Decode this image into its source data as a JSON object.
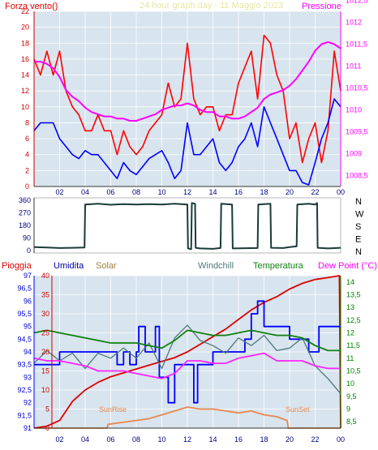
{
  "header": {
    "title": "24 hour graph day - 11 Maggio 2023",
    "left_label": "Forza vento()",
    "right_label": "Pressione"
  },
  "bottom_header": {
    "pioggia": "Pioggia",
    "umidita": "Umidita",
    "solar": "Solar",
    "windchill": "Windchill",
    "temperatura": "Temperatura",
    "dewpoint": "Dew Point (°C)"
  },
  "annotations": {
    "sunrise": "SunRise",
    "sunset": "SunSet"
  },
  "direction_labels": [
    "N",
    "W",
    "S",
    "E",
    "N"
  ],
  "colors": {
    "wind_gust": "#ff0000",
    "wind_avg": "#0000ff",
    "pressure": "#ff00ff",
    "direction": "#1a3a3a",
    "rain": "#dd0000",
    "humidity": "#0000ff",
    "solar": "#e88850",
    "windchill": "#507878",
    "temperature": "#108010",
    "dewpoint": "#ff22ff",
    "plot_bg": "#d8e4ee",
    "grid": "#ffffff",
    "axis_red": "#cc0000",
    "axis_green": "#008000"
  },
  "chart_data": [
    {
      "type": "line",
      "title": "24 hour graph day - 11 Maggio 2023",
      "x_ticks": [
        "02",
        "04",
        "06",
        "08",
        "10",
        "12",
        "14",
        "16",
        "18",
        "20",
        "22",
        "00"
      ],
      "y_left": {
        "label": "Forza vento()",
        "range": [
          0,
          22
        ],
        "ticks": [
          0,
          2,
          4,
          6,
          8,
          10,
          12,
          14,
          16,
          18,
          20,
          22
        ]
      },
      "y_right": {
        "label": "Pressione",
        "range": [
          1008.25,
          1012.25
        ],
        "ticks": [
          "1008,5",
          "1009",
          "1009,5",
          "1010",
          "1010,5",
          "1011",
          "1011,5",
          "1012",
          "1012,5"
        ],
        "tick_values": [
          1008.5,
          1009,
          1009.5,
          1010,
          1010.5,
          1011,
          1011.5,
          1012,
          1012.5
        ]
      },
      "series": [
        {
          "name": "Forza vento gust",
          "axis": "left",
          "color": "#ff0000",
          "x": [
            0,
            0.5,
            1,
            1.5,
            2,
            2.5,
            3,
            3.5,
            4,
            4.5,
            5,
            5.5,
            6,
            6.5,
            7,
            7.5,
            8,
            8.5,
            9,
            9.5,
            10,
            10.5,
            11,
            11.5,
            12,
            12.5,
            13,
            13.5,
            14,
            14.5,
            15,
            15.5,
            16,
            16.5,
            17,
            17.5,
            18,
            18.5,
            19,
            19.5,
            20,
            20.5,
            21,
            21.5,
            22,
            22.5,
            23,
            23.5,
            24
          ],
          "y": [
            16,
            14,
            17,
            14,
            17,
            12,
            10,
            9,
            7,
            7,
            9,
            7,
            7,
            4,
            7,
            5,
            4,
            5,
            7,
            8,
            9,
            13,
            10,
            11,
            18,
            11,
            9,
            10,
            10,
            7,
            9,
            9,
            13,
            15,
            17,
            11,
            19,
            18,
            14,
            12,
            6,
            8,
            3,
            6,
            8,
            3,
            7,
            17,
            12
          ]
        },
        {
          "name": "Forza vento media",
          "axis": "left",
          "color": "#0000ff",
          "x": [
            0,
            0.5,
            1,
            1.5,
            2,
            2.5,
            3,
            3.5,
            4,
            4.5,
            5,
            5.5,
            6,
            6.5,
            7,
            7.5,
            8,
            8.5,
            9,
            9.5,
            10,
            10.5,
            11,
            11.5,
            12,
            12.5,
            13,
            13.5,
            14,
            14.5,
            15,
            15.5,
            16,
            16.5,
            17,
            17.5,
            18,
            18.5,
            19,
            19.5,
            20,
            20.5,
            21,
            21.5,
            22,
            22.5,
            23,
            23.5,
            24
          ],
          "y": [
            7,
            8,
            8,
            8,
            6,
            5,
            4,
            3.5,
            4.5,
            4,
            4,
            3,
            2,
            1,
            3,
            2,
            1.5,
            2.5,
            3.5,
            4,
            4.5,
            3,
            1,
            2,
            8,
            4,
            4,
            5,
            6,
            3,
            2,
            3,
            5,
            6,
            8,
            5,
            10,
            8,
            6,
            4,
            2,
            2,
            0.5,
            0.2,
            3,
            6,
            8,
            11,
            10
          ]
        },
        {
          "name": "Pressione",
          "axis": "right",
          "color": "#ff00ff",
          "x": [
            0,
            0.5,
            1,
            1.5,
            2,
            2.5,
            3,
            3.5,
            4,
            4.5,
            5,
            5.5,
            6,
            6.5,
            7,
            7.5,
            8,
            8.5,
            9,
            9.5,
            10,
            10.5,
            11,
            11.5,
            12,
            12.5,
            13,
            13.5,
            14,
            14.5,
            15,
            15.5,
            16,
            16.5,
            17,
            17.5,
            18,
            18.5,
            19,
            19.5,
            20,
            20.5,
            21,
            21.5,
            22,
            22.5,
            23,
            23.5,
            24
          ],
          "y": [
            1011.1,
            1011.1,
            1011.05,
            1010.95,
            1010.75,
            1010.45,
            1010.3,
            1010.2,
            1010.05,
            1009.95,
            1009.9,
            1009.85,
            1009.85,
            1009.8,
            1009.8,
            1009.75,
            1009.75,
            1009.8,
            1009.85,
            1009.9,
            1010.0,
            1010.05,
            1010.1,
            1010.1,
            1010.15,
            1010.1,
            1010.0,
            1009.95,
            1009.95,
            1009.85,
            1009.85,
            1009.8,
            1009.8,
            1009.85,
            1009.95,
            1010.05,
            1010.25,
            1010.35,
            1010.4,
            1010.45,
            1010.55,
            1010.7,
            1010.9,
            1011.1,
            1011.35,
            1011.5,
            1011.55,
            1011.5,
            1011.4
          ]
        }
      ]
    },
    {
      "type": "line",
      "title": "",
      "x_ticks": [
        "02",
        "04",
        "06",
        "08",
        "10",
        "12",
        "14",
        "16",
        "18",
        "20",
        "22",
        "00"
      ],
      "y_left": {
        "range": [
          0,
          360
        ],
        "ticks": [
          0,
          90,
          180,
          270,
          360
        ]
      },
      "y_right_labels": [
        "N",
        "W",
        "S",
        "E",
        "N"
      ],
      "series": [
        {
          "name": "Direzione vento",
          "axis": "left",
          "color": "#1a3a3a",
          "x": [
            0,
            1,
            2,
            3,
            3.95,
            4,
            5,
            6,
            7,
            8,
            9,
            10,
            11,
            12,
            12.05,
            12.3,
            12.35,
            12.6,
            12.65,
            13,
            14,
            14.6,
            14.65,
            15.5,
            15.55,
            17.5,
            17.55,
            18.5,
            18.55,
            19.5,
            20,
            20.55,
            20.6,
            21.5,
            22,
            22.15,
            22.2,
            23,
            24
          ],
          "y": [
            25,
            22,
            18,
            20,
            22,
            330,
            335,
            328,
            332,
            330,
            333,
            330,
            335,
            330,
            15,
            10,
            340,
            335,
            20,
            15,
            12,
            18,
            335,
            330,
            15,
            18,
            330,
            335,
            20,
            18,
            25,
            30,
            330,
            335,
            330,
            340,
            20,
            15,
            20
          ]
        }
      ]
    },
    {
      "type": "line",
      "title": "",
      "x_ticks": [
        "02",
        "04",
        "06",
        "08",
        "10",
        "12",
        "14",
        "16",
        "18",
        "20",
        "22",
        "00"
      ],
      "axes": {
        "rain": {
          "range": [
            0,
            40
          ],
          "ticks": [
            0,
            5,
            10,
            15,
            20,
            25,
            30,
            35,
            40
          ]
        },
        "humidity": {
          "range": [
            91,
            97
          ],
          "ticks": [
            "91",
            "91,5",
            "92",
            "92,5",
            "93",
            "93,5",
            "94",
            "94,5",
            "95",
            "95,5",
            "96",
            "96,5",
            "97"
          ],
          "tick_values": [
            91,
            91.5,
            92,
            92.5,
            93,
            93.5,
            94,
            94.5,
            95,
            95.5,
            96,
            96.5,
            97
          ]
        },
        "temperature": {
          "range": [
            8.25,
            14.25
          ],
          "ticks": [
            "8,5",
            "9",
            "9,5",
            "10",
            "10,5",
            "11",
            "11,5",
            "12",
            "12,5",
            "13",
            "13,5",
            "14"
          ],
          "tick_values": [
            8.5,
            9,
            9.5,
            10,
            10.5,
            11,
            11.5,
            12,
            12.5,
            13,
            13.5,
            14
          ]
        }
      },
      "series": [
        {
          "name": "Pioggia",
          "axis": "rain",
          "color": "#dd0000",
          "x": [
            0,
            1,
            2,
            3,
            4,
            5,
            6,
            7,
            8,
            9,
            10,
            11,
            12,
            13,
            14,
            15,
            16,
            17,
            18,
            19,
            20,
            21,
            22,
            23,
            23.9,
            24
          ],
          "y": [
            0,
            0.5,
            2,
            7,
            10,
            12,
            13.5,
            14.5,
            15.5,
            16.5,
            17.5,
            18.5,
            20,
            22,
            24,
            26,
            28.5,
            31,
            33,
            34.5,
            36.5,
            38,
            39,
            39.5,
            40,
            0
          ]
        },
        {
          "name": "Umidita",
          "axis": "humidity",
          "color": "#0000ff",
          "x": [
            0,
            2,
            2,
            6.5,
            6.5,
            7,
            7,
            7.5,
            7.5,
            8,
            8,
            8.2,
            8.2,
            8.7,
            8.7,
            9.5,
            9.5,
            9.8,
            9.8,
            10.5,
            10.5,
            11,
            11,
            12.5,
            12.5,
            12.8,
            12.8,
            14,
            14,
            16.5,
            16.5,
            17,
            17,
            17.5,
            17.5,
            18,
            18,
            20,
            20,
            21.5,
            21.5,
            22.3,
            22.3,
            24
          ],
          "y": [
            93.5,
            93.5,
            94,
            94,
            93.5,
            93.5,
            94,
            94,
            93.5,
            93.5,
            94,
            94,
            95,
            95,
            94,
            94,
            95,
            95,
            93,
            93,
            92,
            92,
            93.5,
            93.5,
            92,
            92,
            93.5,
            93.5,
            94,
            94,
            94.5,
            94.5,
            95.5,
            95.5,
            96,
            96,
            95,
            95,
            94.5,
            94.5,
            94,
            94,
            95,
            95
          ]
        },
        {
          "name": "Solar",
          "axis": "rain",
          "color": "#e88850",
          "x": [
            0,
            5.7,
            5.8,
            8,
            9,
            10,
            11,
            12,
            13,
            14,
            15,
            16,
            17,
            18,
            19,
            19.8,
            19.9,
            24
          ],
          "y": [
            0,
            0,
            1,
            2,
            2.5,
            3.5,
            4.5,
            5.5,
            5,
            5,
            4.5,
            4,
            4.5,
            3.5,
            3,
            2,
            0,
            0
          ]
        },
        {
          "name": "Windchill",
          "axis": "temperature",
          "color": "#507878",
          "x": [
            0,
            1,
            2,
            3,
            4,
            5,
            6,
            7,
            8,
            9,
            10,
            11,
            12,
            13,
            14,
            15,
            16,
            17,
            18,
            19,
            20,
            21,
            22,
            23,
            24
          ],
          "y": [
            10.8,
            11.3,
            10.9,
            11.2,
            10.6,
            11.2,
            11.0,
            11.4,
            11.0,
            11.6,
            10.6,
            11.8,
            12.3,
            11.7,
            11.5,
            11.2,
            11.8,
            11.5,
            11.9,
            11.3,
            11.4,
            11.8,
            10.7,
            10.2,
            9.6
          ]
        },
        {
          "name": "Temperatura",
          "axis": "temperature",
          "color": "#108010",
          "x": [
            0,
            1,
            2,
            3,
            4,
            5,
            6,
            7,
            8,
            9,
            10,
            11,
            12,
            13,
            14,
            15,
            16,
            17,
            18,
            19,
            20,
            21,
            22,
            23,
            24
          ],
          "y": [
            12.0,
            12.1,
            12.0,
            11.9,
            11.8,
            11.7,
            11.6,
            11.6,
            11.6,
            11.5,
            11.4,
            11.7,
            12.1,
            12.0,
            11.9,
            11.9,
            12.0,
            12.1,
            12.0,
            11.9,
            11.9,
            11.8,
            11.5,
            11.3,
            11.3
          ]
        },
        {
          "name": "Dew Point",
          "axis": "temperature",
          "color": "#ff22ff",
          "x": [
            0,
            1,
            2,
            3,
            4,
            5,
            6,
            7,
            8,
            9,
            10,
            11,
            12,
            13,
            14,
            15,
            16,
            17,
            18,
            19,
            20,
            21,
            22,
            23,
            24
          ],
          "y": [
            11.0,
            10.9,
            10.9,
            10.8,
            10.7,
            10.5,
            10.5,
            10.5,
            10.4,
            10.3,
            10.2,
            10.4,
            10.9,
            10.9,
            10.8,
            10.8,
            11.0,
            11.1,
            11.2,
            10.9,
            10.9,
            10.9,
            10.7,
            10.6,
            10.6
          ]
        }
      ]
    }
  ]
}
